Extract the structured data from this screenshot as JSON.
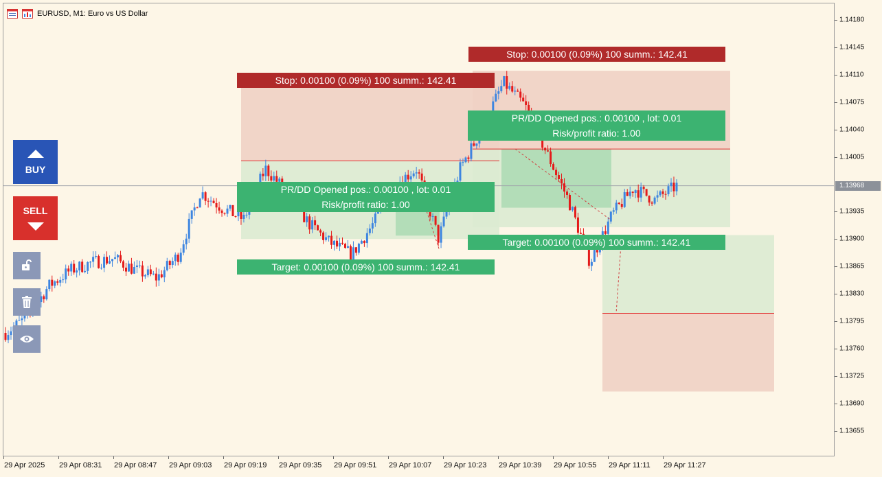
{
  "header": {
    "title": "EURUSD, M1:  Euro vs US Dollar"
  },
  "price_axis": {
    "labels": [
      "1.14180",
      "1.14145",
      "1.14110",
      "1.14075",
      "1.14040",
      "1.14005",
      "1.13935",
      "1.13900",
      "1.13865",
      "1.13830",
      "1.13795",
      "1.13760",
      "1.13725",
      "1.13690",
      "1.13655"
    ],
    "current_price": "1.13968"
  },
  "time_axis": {
    "labels": [
      "29 Apr 2025",
      "29 Apr 08:31",
      "29 Apr 08:47",
      "29 Apr 09:03",
      "29 Apr 09:19",
      "29 Apr 09:35",
      "29 Apr 09:51",
      "29 Apr 10:07",
      "29 Apr 10:23",
      "29 Apr 10:39",
      "29 Apr 10:55",
      "29 Apr 11:11",
      "29 Apr 11:27"
    ]
  },
  "trade_panel": {
    "buy_label": "BUY",
    "sell_label": "SELL",
    "buy_icon": "arrow-up-icon",
    "sell_icon": "arrow-down-icon",
    "tools": [
      {
        "icon": "unlock-icon"
      },
      {
        "icon": "trash-icon"
      },
      {
        "icon": "eye-icon"
      }
    ]
  },
  "positions": [
    {
      "stop_label": "Stop: 0.00100 (0.09%) 100 summ.: 142.41",
      "prdd_line1": "PR/DD Opened pos.: 0.00100 , lot: 0.01",
      "prdd_line2": "Risk/profit ratio: 1.00",
      "target_label": "Target: 0.00100 (0.09%) 100 summ.: 142.41"
    },
    {
      "stop_label": "Stop: 0.00100 (0.09%) 100 summ.: 142.41",
      "prdd_line1": "PR/DD Opened pos.: 0.00100 , lot: 0.01",
      "prdd_line2": "Risk/profit ratio: 1.00",
      "target_label": "Target: 0.00100 (0.09%) 100 summ.: 142.41"
    }
  ],
  "colors": {
    "background": "#fdf6e7",
    "bull_candle": "#3d85e0",
    "bear_candle": "#e41a1a",
    "stop_zone": "#f0d2c4",
    "target_zone": "#dcebd2",
    "label_green": "#3cb371",
    "label_red": "#b02a2a",
    "buy_button": "#2955b6",
    "sell_button": "#d8302c"
  },
  "chart_data": {
    "type": "candlestick",
    "symbol": "EURUSD",
    "timeframe": "M1",
    "ylim": [
      1.1363,
      1.14195
    ],
    "current_price": 1.13968,
    "x": [
      "29 Apr 2025",
      "29 Apr 08:31",
      "29 Apr 08:47",
      "29 Apr 09:03",
      "29 Apr 09:19",
      "29 Apr 09:35",
      "29 Apr 09:51",
      "29 Apr 10:07",
      "29 Apr 10:23",
      "29 Apr 10:39",
      "29 Apr 10:55",
      "29 Apr 11:11",
      "29 Apr 11:27"
    ],
    "close_path": [
      1.1378,
      1.138,
      1.1384,
      1.1386,
      1.1387,
      1.13875,
      1.1386,
      1.1385,
      1.1388,
      1.1396,
      1.1394,
      1.13925,
      1.1399,
      1.1396,
      1.1392,
      1.13895,
      1.1388,
      1.1392,
      1.1397,
      1.1399,
      1.139,
      1.1399,
      1.1404,
      1.141,
      1.1407,
      1.1401,
      1.1395,
      1.1387,
      1.1393,
      1.13965,
      1.1395,
      1.13968
    ],
    "positions": [
      {
        "entry": 1.14,
        "stop": 1.141,
        "target": 1.139
      },
      {
        "entry": 1.14015,
        "stop": 1.14115,
        "target": 1.13915
      },
      {
        "entry": 1.13805,
        "stop": 1.13705,
        "target": 1.13905
      }
    ]
  }
}
